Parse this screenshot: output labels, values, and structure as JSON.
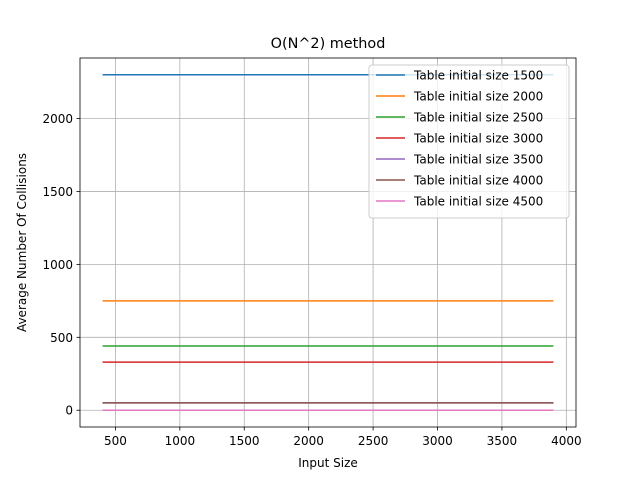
{
  "chart_data": {
    "type": "line",
    "title": "O(N^2) method",
    "xlabel": "Input Size",
    "ylabel": "Average Number Of Collisions",
    "xlim": [
      225,
      4075
    ],
    "ylim": [
      -115,
      2415
    ],
    "x_ticks": [
      500,
      1000,
      1500,
      2000,
      2500,
      3000,
      3500,
      4000
    ],
    "y_ticks": [
      0,
      500,
      1000,
      1500,
      2000
    ],
    "grid": true,
    "legend_position": "top-right",
    "x": [
      400,
      3900
    ],
    "series": [
      {
        "name": "Table initial size 1500",
        "color": "#1f77b4",
        "values": [
          2300,
          2300
        ]
      },
      {
        "name": "Table initial size 2000",
        "color": "#ff7f0e",
        "values": [
          750,
          750
        ]
      },
      {
        "name": "Table initial size 2500",
        "color": "#2ca02c",
        "values": [
          440,
          440
        ]
      },
      {
        "name": "Table initial size 3000",
        "color": "#d62728",
        "values": [
          330,
          330
        ]
      },
      {
        "name": "Table initial size 3500",
        "color": "#9467bd",
        "values": [
          50,
          50
        ]
      },
      {
        "name": "Table initial size 4000",
        "color": "#8c564b",
        "values": [
          50,
          50
        ]
      },
      {
        "name": "Table initial size 4500",
        "color": "#e377c2",
        "values": [
          0,
          0
        ]
      }
    ]
  }
}
